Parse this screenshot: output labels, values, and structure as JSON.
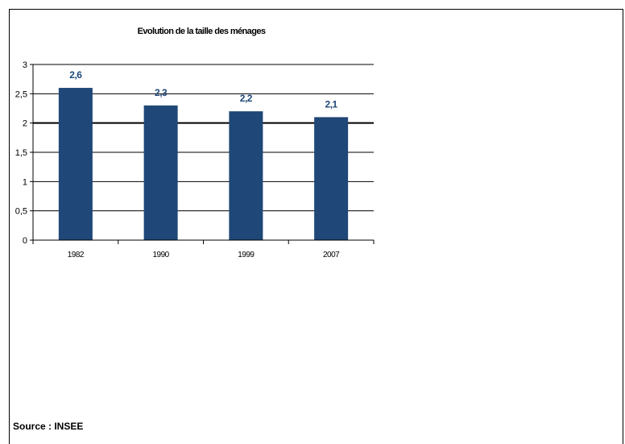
{
  "colors": {
    "bar": "#1f4777",
    "label": "#1f4777",
    "axis": "#000000",
    "grid": "#000000"
  },
  "source": "Source : INSEE",
  "chart_data": {
    "type": "bar",
    "title": "Evolution de la taille des ménages",
    "categories": [
      "1982",
      "1990",
      "1999",
      "2007"
    ],
    "values": [
      2.6,
      2.3,
      2.2,
      2.1
    ],
    "value_labels": [
      "2,6",
      "2,3",
      "2,2",
      "2,1"
    ],
    "xlabel": "",
    "ylabel": "",
    "ylim": [
      0,
      3
    ],
    "yticks": [
      0,
      0.5,
      1,
      1.5,
      2,
      2.5,
      3
    ],
    "ytick_labels": [
      "0",
      "0,5",
      "1",
      "1,5",
      "2",
      "2,5",
      "3"
    ],
    "grid": true,
    "legend": false
  }
}
